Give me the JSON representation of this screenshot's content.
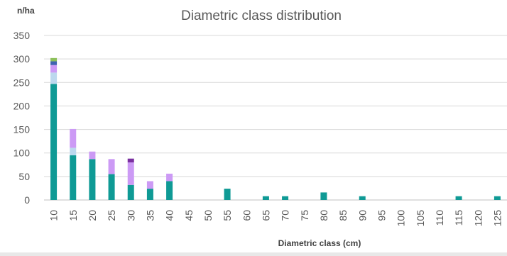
{
  "chart_data": {
    "type": "bar",
    "stacked": true,
    "title": "Diametric class distribution",
    "ylabel": "n/ha",
    "xlabel": "Diametric class (cm)",
    "ylim": [
      0,
      350
    ],
    "yticks": [
      0,
      50,
      100,
      150,
      200,
      250,
      300,
      350
    ],
    "categories": [
      "10",
      "15",
      "20",
      "25",
      "30",
      "35",
      "40",
      "45",
      "50",
      "55",
      "60",
      "65",
      "70",
      "75",
      "80",
      "85",
      "90",
      "95",
      "100",
      "105",
      "110",
      "115",
      "120",
      "125"
    ],
    "grid": true,
    "legend": "none",
    "series": [
      {
        "color": "#0f9a95",
        "values": [
          247,
          95,
          87,
          55,
          32,
          24,
          40,
          0,
          0,
          24,
          0,
          8,
          8,
          0,
          16,
          0,
          8,
          0,
          0,
          0,
          0,
          8,
          0,
          8
        ]
      },
      {
        "color": "#bcd8ee",
        "values": [
          24,
          16,
          0,
          0,
          0,
          0,
          0,
          0,
          0,
          0,
          0,
          0,
          0,
          0,
          0,
          0,
          0,
          0,
          0,
          0,
          0,
          0,
          0,
          0
        ]
      },
      {
        "color": "#cc9af5",
        "values": [
          16,
          40,
          16,
          32,
          48,
          16,
          16,
          0,
          0,
          0,
          0,
          0,
          0,
          0,
          0,
          0,
          0,
          0,
          0,
          0,
          0,
          0,
          0,
          0
        ]
      },
      {
        "color": "#7a2fa0",
        "values": [
          0,
          0,
          0,
          0,
          8,
          0,
          0,
          0,
          0,
          0,
          0,
          0,
          0,
          0,
          0,
          0,
          0,
          0,
          0,
          0,
          0,
          0,
          0,
          0
        ]
      },
      {
        "color": "#3f63b0",
        "values": [
          8,
          0,
          0,
          0,
          0,
          0,
          0,
          0,
          0,
          0,
          0,
          0,
          0,
          0,
          0,
          0,
          0,
          0,
          0,
          0,
          0,
          0,
          0,
          0
        ]
      },
      {
        "color": "#8cc05a",
        "values": [
          7,
          0,
          0,
          0,
          0,
          0,
          0,
          0,
          0,
          0,
          0,
          0,
          0,
          0,
          0,
          0,
          0,
          0,
          0,
          0,
          0,
          0,
          0,
          0
        ]
      }
    ]
  }
}
